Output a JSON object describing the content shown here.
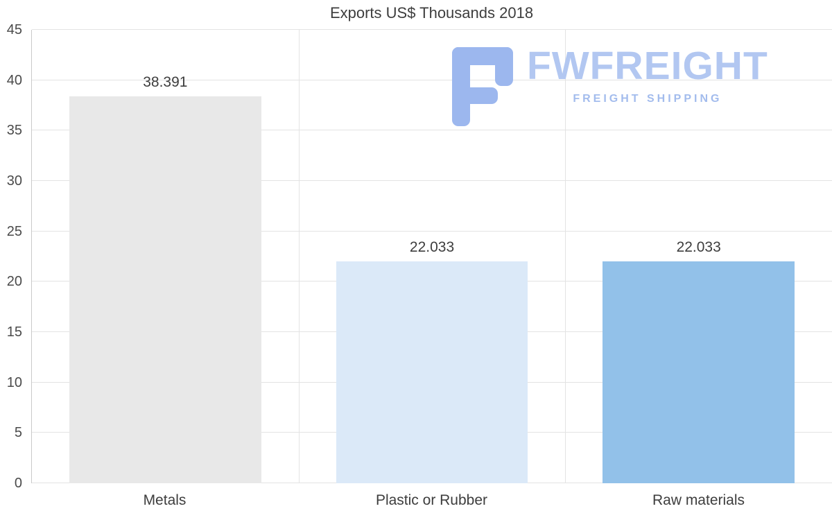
{
  "chart_data": {
    "type": "bar",
    "title": "Exports US$ Thousands 2018",
    "categories": [
      "Metals",
      "Plastic or Rubber",
      "Raw materials"
    ],
    "values": [
      38.391,
      22.033,
      22.033
    ],
    "display_values": [
      "38.391",
      "22.033",
      "22.033"
    ],
    "bar_colors": [
      "#e8e8e8",
      "#dbe9f8",
      "#92c1e9"
    ],
    "xlabel": "",
    "ylabel": "",
    "ylim": [
      0,
      45
    ],
    "yticks": [
      0,
      5,
      10,
      15,
      20,
      25,
      30,
      35,
      40,
      45
    ],
    "grid": "horizontal-gridlines-and-category-dividers",
    "legend": "none"
  },
  "watermark": {
    "brand": "FWFREIGHT",
    "tagline": "FREIGHT SHIPPING",
    "color": "#b2c7f1"
  }
}
